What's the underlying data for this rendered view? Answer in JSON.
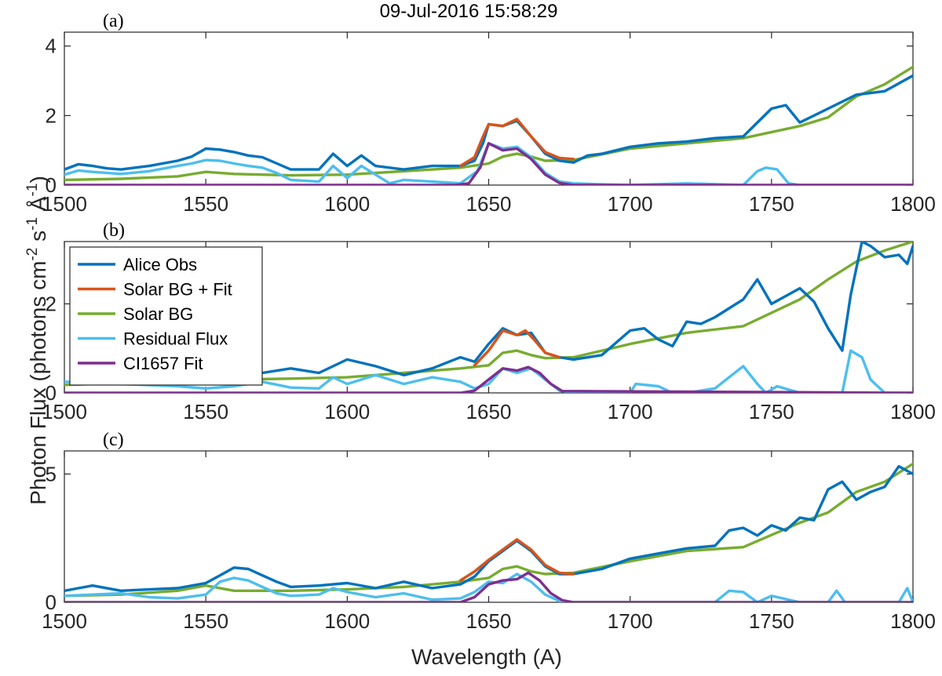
{
  "figure": {
    "title": "09-Jul-2016 15:58:29",
    "xlabel": "Wavelength (A)",
    "ylabel_main": "Photon Flux  (photons cm",
    "ylabel_sup1": "-2",
    "ylabel_mid1": " s",
    "ylabel_sup2": "-1",
    "ylabel_mid2": " Å",
    "ylabel_sup3": "-1",
    "ylabel_end": ")"
  },
  "colors": {
    "alice_obs": "#0072BD",
    "solar_bg_fit": "#D95319",
    "solar_bg": "#77AC30",
    "residual_flux": "#4DBEEE",
    "ci1657_fit": "#7E2F8E"
  },
  "legend": [
    {
      "key": "alice_obs",
      "label": "Alice Obs"
    },
    {
      "key": "solar_bg_fit",
      "label": "Solar BG + Fit"
    },
    {
      "key": "solar_bg",
      "label": "Solar BG"
    },
    {
      "key": "residual_flux",
      "label": "Residual Flux"
    },
    {
      "key": "ci1657_fit",
      "label": "CI1657 Fit"
    }
  ],
  "chart_data": [
    {
      "panel": "(a)",
      "type": "line",
      "xlim": [
        1500,
        1800
      ],
      "ylim": [
        0,
        4.4
      ],
      "xticks": [
        1500,
        1550,
        1600,
        1650,
        1700,
        1750,
        1800
      ],
      "yticks": [
        0,
        2,
        4
      ],
      "series": [
        {
          "key": "solar_bg",
          "name": "Solar BG",
          "x": [
            1500,
            1520,
            1540,
            1550,
            1560,
            1580,
            1600,
            1620,
            1640,
            1650,
            1655,
            1660,
            1665,
            1670,
            1680,
            1700,
            1720,
            1740,
            1760,
            1770,
            1780,
            1790,
            1800
          ],
          "y": [
            0.15,
            0.18,
            0.25,
            0.38,
            0.32,
            0.28,
            0.3,
            0.4,
            0.5,
            0.62,
            0.82,
            0.9,
            0.82,
            0.7,
            0.72,
            1.05,
            1.2,
            1.35,
            1.7,
            1.95,
            2.55,
            2.9,
            3.4
          ]
        },
        {
          "key": "alice_obs",
          "name": "Alice Obs",
          "x": [
            1500,
            1505,
            1510,
            1515,
            1520,
            1530,
            1540,
            1545,
            1550,
            1555,
            1560,
            1565,
            1570,
            1580,
            1590,
            1595,
            1600,
            1605,
            1610,
            1620,
            1630,
            1640,
            1645,
            1648,
            1650,
            1655,
            1660,
            1665,
            1670,
            1675,
            1680,
            1685,
            1690,
            1700,
            1710,
            1720,
            1730,
            1740,
            1750,
            1755,
            1760,
            1765,
            1770,
            1780,
            1790,
            1800
          ],
          "y": [
            0.45,
            0.6,
            0.55,
            0.48,
            0.45,
            0.55,
            0.7,
            0.82,
            1.05,
            1.02,
            0.95,
            0.85,
            0.8,
            0.45,
            0.45,
            0.9,
            0.55,
            0.85,
            0.55,
            0.45,
            0.55,
            0.55,
            0.7,
            1.2,
            1.75,
            1.7,
            1.85,
            1.4,
            0.9,
            0.7,
            0.65,
            0.85,
            0.9,
            1.1,
            1.2,
            1.25,
            1.35,
            1.4,
            2.2,
            2.3,
            1.8,
            2.0,
            2.2,
            2.6,
            2.7,
            3.15
          ]
        },
        {
          "key": "residual_flux",
          "name": "Residual Flux",
          "x": [
            1500,
            1505,
            1510,
            1520,
            1530,
            1540,
            1545,
            1550,
            1555,
            1560,
            1565,
            1570,
            1575,
            1580,
            1590,
            1595,
            1600,
            1605,
            1610,
            1615,
            1620,
            1630,
            1640,
            1646,
            1650,
            1655,
            1660,
            1665,
            1670,
            1675,
            1680,
            1690,
            1700,
            1720,
            1740,
            1745,
            1748,
            1752,
            1756,
            1760,
            1800
          ],
          "y": [
            0.3,
            0.42,
            0.38,
            0.32,
            0.4,
            0.55,
            0.62,
            0.72,
            0.7,
            0.62,
            0.55,
            0.5,
            0.35,
            0.15,
            0.1,
            0.55,
            0.2,
            0.55,
            0.3,
            0.05,
            0.15,
            0.1,
            0.05,
            0.4,
            1.2,
            1.05,
            1.1,
            0.8,
            0.35,
            0.1,
            0.05,
            0.02,
            0.0,
            0.05,
            0.0,
            0.4,
            0.5,
            0.45,
            0.05,
            0.0,
            0.0
          ]
        },
        {
          "key": "solar_bg_fit",
          "name": "Solar BG + Fit",
          "x": [
            1640,
            1645,
            1648,
            1650,
            1655,
            1660,
            1665,
            1670,
            1675,
            1680
          ],
          "y": [
            0.55,
            0.8,
            1.4,
            1.75,
            1.7,
            1.9,
            1.4,
            0.95,
            0.78,
            0.75
          ]
        },
        {
          "key": "ci1657_fit",
          "name": "CI1657 Fit",
          "x": [
            1500,
            1638,
            1643,
            1647,
            1650,
            1655,
            1660,
            1665,
            1670,
            1675,
            1680,
            1800
          ],
          "y": [
            0,
            0,
            0.05,
            0.5,
            1.2,
            1.0,
            1.05,
            0.75,
            0.3,
            0.06,
            0,
            0
          ]
        }
      ]
    },
    {
      "panel": "(b)",
      "type": "line",
      "xlim": [
        1500,
        1800
      ],
      "ylim": [
        0,
        3.4
      ],
      "xticks": [
        1500,
        1550,
        1600,
        1650,
        1700,
        1750,
        1800
      ],
      "yticks": [
        0,
        2
      ],
      "series": [
        {
          "key": "solar_bg",
          "name": "Solar BG",
          "x": [
            1500,
            1520,
            1540,
            1560,
            1580,
            1600,
            1620,
            1640,
            1650,
            1655,
            1660,
            1665,
            1670,
            1680,
            1700,
            1720,
            1740,
            1760,
            1770,
            1780,
            1790,
            1800
          ],
          "y": [
            0.18,
            0.22,
            0.28,
            0.3,
            0.32,
            0.35,
            0.45,
            0.55,
            0.62,
            0.9,
            0.95,
            0.85,
            0.78,
            0.8,
            1.1,
            1.35,
            1.5,
            2.1,
            2.55,
            2.95,
            3.2,
            3.4
          ]
        },
        {
          "key": "alice_obs",
          "name": "Alice Obs",
          "x": [
            1560,
            1570,
            1580,
            1590,
            1600,
            1610,
            1620,
            1630,
            1640,
            1645,
            1650,
            1655,
            1660,
            1665,
            1670,
            1675,
            1680,
            1690,
            1700,
            1705,
            1710,
            1715,
            1720,
            1725,
            1730,
            1740,
            1745,
            1750,
            1760,
            1765,
            1770,
            1775,
            1778,
            1782,
            1785,
            1790,
            1795,
            1798,
            1800
          ],
          "y": [
            0.4,
            0.45,
            0.55,
            0.45,
            0.75,
            0.6,
            0.4,
            0.55,
            0.8,
            0.7,
            1.1,
            1.45,
            1.3,
            1.35,
            0.9,
            0.8,
            0.75,
            0.85,
            1.4,
            1.45,
            1.2,
            1.05,
            1.6,
            1.55,
            1.7,
            2.1,
            2.55,
            2.0,
            2.35,
            2.05,
            1.45,
            0.95,
            2.2,
            3.4,
            3.3,
            3.05,
            3.1,
            2.9,
            3.3
          ]
        },
        {
          "key": "residual_flux",
          "name": "Residual Flux",
          "x": [
            1500,
            1540,
            1550,
            1560,
            1570,
            1580,
            1590,
            1595,
            1600,
            1605,
            1610,
            1620,
            1630,
            1640,
            1645,
            1650,
            1655,
            1660,
            1665,
            1670,
            1675,
            1680,
            1690,
            1700,
            1702,
            1710,
            1715,
            1720,
            1730,
            1735,
            1740,
            1745,
            1748,
            1752,
            1760,
            1775,
            1778,
            1782,
            1785,
            1790,
            1800
          ],
          "y": [
            0.25,
            0.15,
            0.1,
            0.15,
            0.25,
            0.12,
            0.1,
            0.35,
            0.2,
            0.3,
            0.4,
            0.2,
            0.35,
            0.25,
            0.1,
            0.2,
            0.55,
            0.45,
            0.55,
            0.3,
            0.05,
            0.0,
            0.0,
            0.0,
            0.2,
            0.15,
            0.0,
            0.0,
            0.1,
            0.35,
            0.6,
            0.2,
            0.0,
            0.15,
            0.0,
            0.0,
            0.95,
            0.8,
            0.3,
            0.0,
            0.0
          ]
        },
        {
          "key": "solar_bg_fit",
          "name": "Solar BG + Fit",
          "x": [
            1645,
            1650,
            1655,
            1660,
            1663,
            1666,
            1670,
            1675
          ],
          "y": [
            0.62,
            0.95,
            1.4,
            1.3,
            1.4,
            1.2,
            0.9,
            0.8
          ]
        },
        {
          "key": "ci1657_fit",
          "name": "CI1657 Fit",
          "x": [
            1500,
            1640,
            1645,
            1650,
            1655,
            1660,
            1664,
            1668,
            1672,
            1676,
            1800
          ],
          "y": [
            0,
            0,
            0.05,
            0.3,
            0.55,
            0.5,
            0.58,
            0.45,
            0.2,
            0.04,
            0
          ]
        }
      ]
    },
    {
      "panel": "(c)",
      "type": "line",
      "xlim": [
        1500,
        1800
      ],
      "ylim": [
        0,
        5.9
      ],
      "xticks": [
        1500,
        1550,
        1600,
        1650,
        1700,
        1750,
        1800
      ],
      "yticks": [
        0,
        5
      ],
      "series": [
        {
          "key": "solar_bg",
          "name": "Solar BG",
          "x": [
            1500,
            1520,
            1540,
            1550,
            1560,
            1580,
            1600,
            1620,
            1640,
            1650,
            1655,
            1660,
            1665,
            1670,
            1680,
            1700,
            1720,
            1740,
            1760,
            1770,
            1780,
            1790,
            1800
          ],
          "y": [
            0.25,
            0.3,
            0.45,
            0.65,
            0.45,
            0.45,
            0.5,
            0.6,
            0.8,
            0.95,
            1.3,
            1.4,
            1.2,
            1.1,
            1.15,
            1.6,
            2.0,
            2.15,
            3.1,
            3.5,
            4.3,
            4.7,
            5.4
          ]
        },
        {
          "key": "alice_obs",
          "name": "Alice Obs",
          "x": [
            1500,
            1505,
            1510,
            1520,
            1530,
            1540,
            1550,
            1555,
            1560,
            1565,
            1570,
            1575,
            1580,
            1590,
            1600,
            1610,
            1620,
            1630,
            1640,
            1645,
            1650,
            1655,
            1660,
            1665,
            1670,
            1675,
            1680,
            1690,
            1700,
            1710,
            1720,
            1730,
            1735,
            1740,
            1745,
            1750,
            1755,
            1760,
            1765,
            1770,
            1775,
            1780,
            1785,
            1790,
            1795,
            1800
          ],
          "y": [
            0.45,
            0.55,
            0.65,
            0.45,
            0.5,
            0.55,
            0.75,
            1.05,
            1.35,
            1.3,
            1.05,
            0.8,
            0.6,
            0.65,
            0.75,
            0.55,
            0.8,
            0.55,
            0.7,
            1.0,
            1.6,
            2.0,
            2.4,
            2.0,
            1.4,
            1.1,
            1.1,
            1.3,
            1.7,
            1.9,
            2.1,
            2.2,
            2.8,
            2.9,
            2.6,
            3.0,
            2.8,
            3.3,
            3.2,
            4.4,
            4.7,
            4.0,
            4.3,
            4.5,
            5.3,
            5.0
          ]
        },
        {
          "key": "residual_flux",
          "name": "Residual Flux",
          "x": [
            1500,
            1510,
            1520,
            1530,
            1540,
            1550,
            1555,
            1560,
            1565,
            1570,
            1575,
            1580,
            1590,
            1595,
            1600,
            1610,
            1620,
            1630,
            1640,
            1645,
            1650,
            1655,
            1660,
            1665,
            1670,
            1675,
            1680,
            1690,
            1700,
            1710,
            1730,
            1735,
            1740,
            1745,
            1750,
            1760,
            1770,
            1773,
            1776,
            1780,
            1795,
            1798,
            1800
          ],
          "y": [
            0.25,
            0.3,
            0.35,
            0.2,
            0.15,
            0.3,
            0.8,
            0.95,
            0.85,
            0.6,
            0.35,
            0.25,
            0.3,
            0.55,
            0.4,
            0.2,
            0.35,
            0.1,
            0.15,
            0.4,
            0.8,
            0.75,
            1.1,
            0.8,
            0.3,
            0.05,
            0.0,
            0.0,
            0.0,
            0.0,
            0.0,
            0.45,
            0.4,
            0.0,
            0.25,
            0.0,
            0.0,
            0.45,
            0.0,
            0.0,
            0.0,
            0.55,
            0.0
          ]
        },
        {
          "key": "solar_bg_fit",
          "name": "Solar BG + Fit",
          "x": [
            1640,
            1645,
            1650,
            1655,
            1660,
            1665,
            1670,
            1675,
            1680
          ],
          "y": [
            0.85,
            1.2,
            1.65,
            2.05,
            2.45,
            2.05,
            1.45,
            1.15,
            1.1
          ]
        },
        {
          "key": "ci1657_fit",
          "name": "CI1657 Fit",
          "x": [
            1500,
            1640,
            1645,
            1650,
            1655,
            1660,
            1664,
            1668,
            1672,
            1676,
            1680,
            1800
          ],
          "y": [
            0,
            0,
            0.2,
            0.7,
            0.85,
            0.9,
            1.15,
            0.85,
            0.35,
            0.08,
            0,
            0
          ]
        }
      ]
    }
  ]
}
